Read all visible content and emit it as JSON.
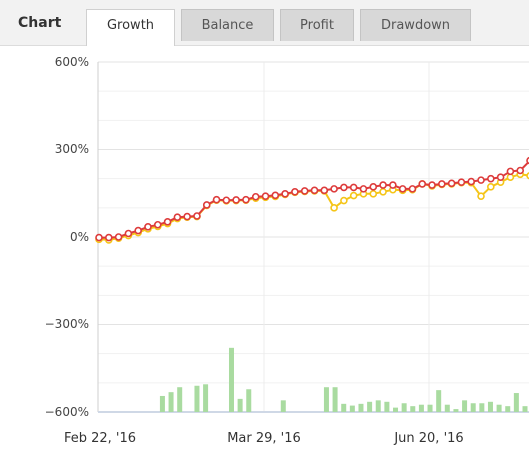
{
  "header": {
    "label": "Chart",
    "tabs": [
      {
        "label": "Growth",
        "active": true
      },
      {
        "label": "Balance",
        "active": false
      },
      {
        "label": "Profit",
        "active": false
      },
      {
        "label": "Drawdown",
        "active": false
      }
    ]
  },
  "chart_data": {
    "type": "line",
    "ylim": [
      -600,
      600
    ],
    "y_ticks": [
      "600%",
      "300%",
      "0%",
      "−300%",
      "−600%"
    ],
    "x_ticks": [
      "Feb 22, '16",
      "Mar 29, '16",
      "Jun 20, '16"
    ],
    "grid": true,
    "colors": {
      "series_red": "#dd3b3b",
      "series_yellow": "#f5c518",
      "bars": "#a9dba0"
    },
    "series": [
      {
        "values": [
          -2,
          -2,
          0,
          12,
          22,
          35,
          42,
          52,
          68,
          70,
          72,
          110,
          128,
          126,
          127,
          128,
          138,
          140,
          143,
          148,
          155,
          158,
          160,
          160,
          165,
          170,
          170,
          165,
          172,
          178,
          178,
          165,
          165,
          182,
          178,
          182,
          184,
          188,
          190,
          195,
          200,
          205,
          225,
          228,
          262
        ]
      },
      {
        "values": [
          -8,
          -10,
          -4,
          5,
          15,
          28,
          36,
          46,
          63,
          68,
          70,
          108,
          126,
          124,
          125,
          126,
          133,
          136,
          139,
          146,
          153,
          156,
          158,
          158,
          100,
          125,
          142,
          148,
          148,
          155,
          162,
          160,
          162,
          182,
          175,
          180,
          182,
          186,
          186,
          140,
          172,
          188,
          205,
          215,
          210
        ]
      },
      {
        "type": "bar",
        "values": [
          0,
          0,
          0,
          0,
          0,
          0,
          0,
          55,
          68,
          85,
          0,
          90,
          95,
          0,
          0,
          220,
          45,
          78,
          0,
          0,
          0,
          40,
          0,
          0,
          0,
          0,
          85,
          85,
          28,
          22,
          28,
          35,
          40,
          35,
          15,
          30,
          20,
          25,
          25,
          75,
          25,
          10,
          40,
          30,
          30,
          35,
          25,
          20,
          65,
          20
        ]
      }
    ]
  }
}
